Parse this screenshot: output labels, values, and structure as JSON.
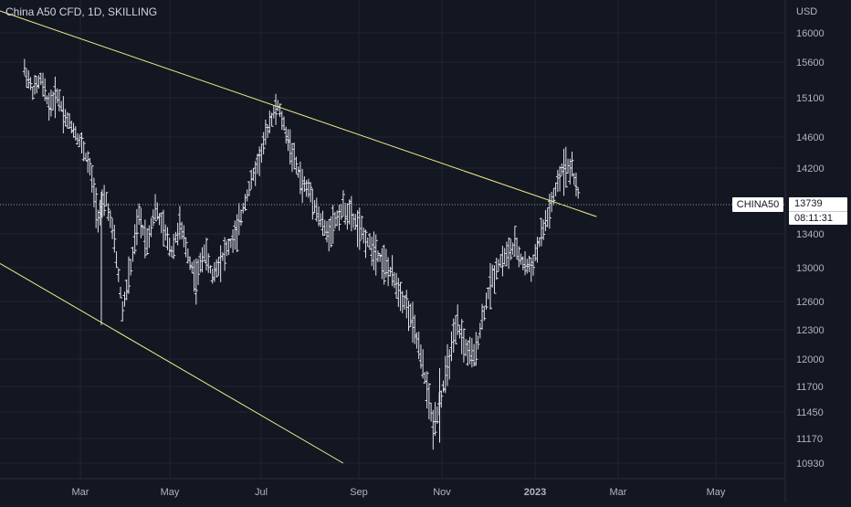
{
  "header": {
    "title": "China A50 CFD, 1D, SKILLING"
  },
  "price_axis": {
    "currency": "USD",
    "ticks": [
      "16000",
      "15600",
      "15100",
      "14600",
      "14200",
      "13739",
      "13400",
      "13000",
      "12600",
      "12300",
      "12000",
      "11700",
      "11450",
      "11170",
      "10930"
    ]
  },
  "time_axis": {
    "ticks": [
      "Mar",
      "May",
      "Jul",
      "Sep",
      "Nov",
      "2023",
      "Mar",
      "May"
    ]
  },
  "price_label": {
    "symbol": "CHINA50",
    "price": "13739",
    "countdown": "08:11:31"
  },
  "colors": {
    "background": "#131722",
    "bars": "#e0e3eb",
    "trendline": "#f2f08a",
    "axis_text": "#b2b5be",
    "gridline": "#1f2433",
    "current_price_line": "#9598a1"
  },
  "chart_data": {
    "type": "ohlc",
    "symbol": "China A50 CFD",
    "interval": "1D",
    "y_unit": "USD",
    "x_range": [
      "2022-01",
      "2023-05"
    ],
    "series": [
      {
        "values": [
          [
            1.5,
            15500
          ],
          [
            2,
            15200
          ],
          [
            2.5,
            15350
          ],
          [
            3,
            15000
          ],
          [
            3.5,
            15150
          ],
          [
            4,
            14850
          ],
          [
            4.5,
            14700
          ],
          [
            5,
            14500
          ],
          [
            5.5,
            14200
          ],
          [
            6,
            13600
          ],
          [
            6.5,
            13800
          ],
          [
            7,
            13300
          ],
          [
            7.5,
            12500
          ],
          [
            8,
            13000
          ],
          [
            8.5,
            13600
          ],
          [
            9,
            13300
          ],
          [
            9.5,
            13700
          ],
          [
            10,
            13450
          ],
          [
            10.5,
            13200
          ],
          [
            11,
            13500
          ],
          [
            11.5,
            13150
          ],
          [
            12,
            12850
          ],
          [
            12.5,
            13200
          ],
          [
            13,
            12900
          ],
          [
            13.5,
            13100
          ],
          [
            14,
            13250
          ],
          [
            14.5,
            13400
          ],
          [
            15,
            13800
          ],
          [
            15.5,
            14100
          ],
          [
            16,
            14400
          ],
          [
            16.5,
            14800
          ],
          [
            17,
            15000
          ],
          [
            17.5,
            14650
          ],
          [
            18,
            14300
          ],
          [
            18.5,
            14000
          ],
          [
            19,
            13900
          ],
          [
            19.5,
            13600
          ],
          [
            20,
            13400
          ],
          [
            20.5,
            13550
          ],
          [
            21,
            13700
          ],
          [
            21.5,
            13600
          ],
          [
            22,
            13450
          ],
          [
            22.5,
            13300
          ],
          [
            23,
            13200
          ],
          [
            23.5,
            13050
          ],
          [
            24,
            12900
          ],
          [
            24.5,
            12700
          ],
          [
            25,
            12500
          ],
          [
            25.5,
            12200
          ],
          [
            26,
            11800
          ],
          [
            26.5,
            11300
          ],
          [
            27,
            11600
          ],
          [
            27.5,
            12000
          ],
          [
            28,
            12350
          ],
          [
            28.5,
            12100
          ],
          [
            29,
            12000
          ],
          [
            29.5,
            12400
          ],
          [
            30,
            12800
          ],
          [
            30.5,
            13050
          ],
          [
            31,
            13150
          ],
          [
            31.5,
            13250
          ],
          [
            32,
            13050
          ],
          [
            32.5,
            13000
          ],
          [
            33,
            13300
          ],
          [
            33.5,
            13600
          ],
          [
            34,
            13900
          ],
          [
            34.5,
            14250
          ],
          [
            35,
            14200
          ],
          [
            35.5,
            13739
          ]
        ]
      }
    ],
    "trendlines": [
      {
        "from": [
          0,
          16300
        ],
        "to": [
          36.5,
          13600
        ]
      },
      {
        "from": [
          0,
          13050
        ],
        "to": [
          21,
          10930
        ]
      }
    ],
    "current_price": 13739,
    "ylim": [
      10900,
      16200
    ]
  }
}
